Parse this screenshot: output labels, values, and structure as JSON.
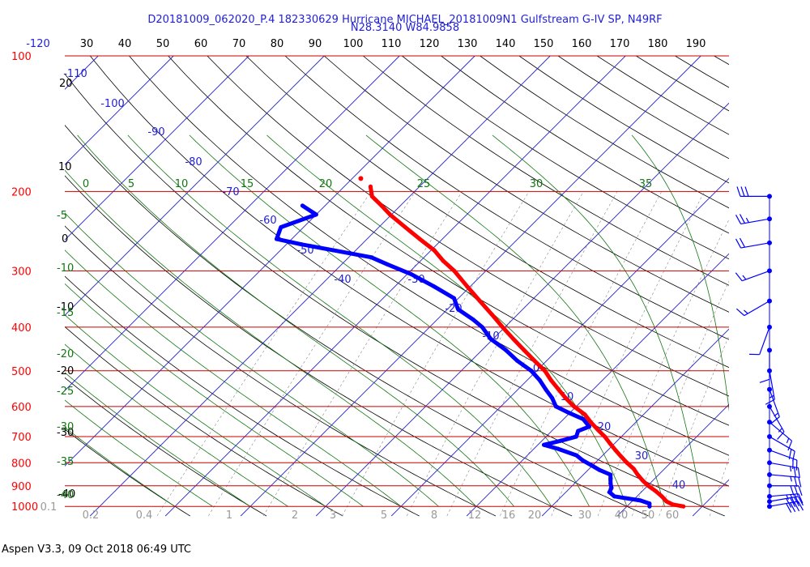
{
  "header": {
    "title_line1": "D20181009_062020_P.4 182330629 Hurricane MICHAEL_20181009N1 Gulfstream G-IV SP, N49RF",
    "title_line2": "N28.3140 W84.9858"
  },
  "footer": {
    "text": "Aspen V3.3, 09 Oct 2018  06:49 UTC"
  },
  "colors": {
    "temperature": "#ff0000",
    "dewpoint": "#0000ff",
    "isobar": "#cc0000",
    "isotherm": "#2222cc",
    "dry_adiabat": "#000000",
    "moist_adiabat": "#117711",
    "mixing_ratio": "#888888",
    "wind_barb": "#0000ff",
    "title": "#1f1fd6"
  },
  "chart_data": {
    "type": "skew-t log-p",
    "title": "D20181009_062020_P.4 182330629 Hurricane MICHAEL_20181009N1 Gulfstream G-IV SP, N49RF",
    "subtitle": "N28.3140 W84.9858",
    "pressure_levels_hPa": [
      100,
      200,
      300,
      400,
      500,
      600,
      700,
      800,
      900,
      1000
    ],
    "top_axis_labels": [
      "-120",
      "30",
      "40",
      "50",
      "60",
      "70",
      "80",
      "90",
      "100",
      "110",
      "120",
      "130",
      "140",
      "150",
      "160",
      "170",
      "180",
      "190"
    ],
    "isotherm_labels": [
      "-110",
      "-100",
      "-90",
      "-80",
      "-70",
      "-60",
      "-50",
      "-40",
      "-30",
      "-20",
      "-10",
      "0",
      "10",
      "20",
      "30",
      "40"
    ],
    "dry_adiabat_labels": [
      "20",
      "10",
      "0",
      "-10",
      "-20",
      "-30",
      "-40"
    ],
    "moist_adiabat_top_labels": [
      "0",
      "5",
      "10",
      "15",
      "20",
      "25",
      "30",
      "35"
    ],
    "moist_adiabat_left_labels": [
      "-5",
      "-10",
      "-15",
      "-20",
      "-25",
      "-30",
      "-35",
      "-40"
    ],
    "mixing_ratio_labels": [
      "0.1",
      "0.2",
      "0.4",
      "1",
      "2",
      "3",
      "5",
      "8",
      "12",
      "16",
      "20",
      "30",
      "40",
      "50",
      "60"
    ],
    "temperature_profile": [
      {
        "p": 1000,
        "t": 27.5
      },
      {
        "p": 990,
        "t": 25.8
      },
      {
        "p": 975,
        "t": 24.6
      },
      {
        "p": 950,
        "t": 23.3
      },
      {
        "p": 925,
        "t": 21.8
      },
      {
        "p": 900,
        "t": 20.1
      },
      {
        "p": 875,
        "t": 18.6
      },
      {
        "p": 850,
        "t": 17.2
      },
      {
        "p": 825,
        "t": 15.9
      },
      {
        "p": 800,
        "t": 14.2
      },
      {
        "p": 775,
        "t": 12.6
      },
      {
        "p": 750,
        "t": 11.0
      },
      {
        "p": 725,
        "t": 9.4
      },
      {
        "p": 700,
        "t": 7.8
      },
      {
        "p": 675,
        "t": 5.9
      },
      {
        "p": 650,
        "t": 4.0
      },
      {
        "p": 625,
        "t": 2.2
      },
      {
        "p": 600,
        "t": -0.3
      },
      {
        "p": 575,
        "t": -2.5
      },
      {
        "p": 550,
        "t": -4.6
      },
      {
        "p": 525,
        "t": -6.8
      },
      {
        "p": 500,
        "t": -8.9
      },
      {
        "p": 475,
        "t": -11.6
      },
      {
        "p": 450,
        "t": -14.4
      },
      {
        "p": 425,
        "t": -17.3
      },
      {
        "p": 400,
        "t": -20.3
      },
      {
        "p": 375,
        "t": -23.4
      },
      {
        "p": 350,
        "t": -26.8
      },
      {
        "p": 325,
        "t": -30.4
      },
      {
        "p": 300,
        "t": -34.2
      },
      {
        "p": 285,
        "t": -37.0
      },
      {
        "p": 270,
        "t": -39.6
      },
      {
        "p": 255,
        "t": -43.0
      },
      {
        "p": 240,
        "t": -46.5
      },
      {
        "p": 225,
        "t": -50.2
      },
      {
        "p": 215,
        "t": -52.5
      },
      {
        "p": 205,
        "t": -55.0
      },
      {
        "p": 195,
        "t": -56.5
      }
    ],
    "dewpoint_profile": [
      {
        "p": 1000,
        "td": 23.0
      },
      {
        "p": 985,
        "td": 22.6
      },
      {
        "p": 970,
        "td": 21.0
      },
      {
        "p": 950,
        "td": 17.0
      },
      {
        "p": 930,
        "td": 15.8
      },
      {
        "p": 910,
        "td": 15.5
      },
      {
        "p": 890,
        "td": 14.8
      },
      {
        "p": 870,
        "td": 14.2
      },
      {
        "p": 850,
        "td": 13.6
      },
      {
        "p": 830,
        "td": 11.5
      },
      {
        "p": 810,
        "td": 9.8
      },
      {
        "p": 790,
        "td": 8.0
      },
      {
        "p": 770,
        "td": 6.5
      },
      {
        "p": 745,
        "td": 3.2
      },
      {
        "p": 730,
        "td": 0.8
      },
      {
        "p": 715,
        "td": 2.5
      },
      {
        "p": 700,
        "td": 4.0
      },
      {
        "p": 680,
        "td": 3.5
      },
      {
        "p": 665,
        "td": 4.4
      },
      {
        "p": 640,
        "td": 2.6
      },
      {
        "p": 620,
        "td": -0.1
      },
      {
        "p": 600,
        "td": -2.7
      },
      {
        "p": 575,
        "td": -4.3
      },
      {
        "p": 550,
        "td": -6.3
      },
      {
        "p": 525,
        "td": -8.3
      },
      {
        "p": 500,
        "td": -10.7
      },
      {
        "p": 475,
        "td": -13.9
      },
      {
        "p": 450,
        "td": -16.8
      },
      {
        "p": 425,
        "td": -20.3
      },
      {
        "p": 400,
        "td": -23.0
      },
      {
        "p": 385,
        "td": -25.2
      },
      {
        "p": 365,
        "td": -28.6
      },
      {
        "p": 345,
        "td": -30.6
      },
      {
        "p": 325,
        "td": -34.8
      },
      {
        "p": 305,
        "td": -39.5
      },
      {
        "p": 290,
        "td": -44.0
      },
      {
        "p": 280,
        "td": -47.0
      },
      {
        "p": 270,
        "td": -53.0
      },
      {
        "p": 262,
        "td": -58.0
      },
      {
        "p": 255,
        "td": -62.0
      },
      {
        "p": 240,
        "td": -63.0
      },
      {
        "p": 225,
        "td": -60.0
      },
      {
        "p": 215,
        "td": -63.0
      }
    ],
    "wind_barbs": [
      {
        "p": 1000,
        "dir": 80,
        "spd": 40
      },
      {
        "p": 975,
        "dir": 80,
        "spd": 40
      },
      {
        "p": 950,
        "dir": 85,
        "spd": 35
      },
      {
        "p": 900,
        "dir": 90,
        "spd": 30
      },
      {
        "p": 850,
        "dir": 95,
        "spd": 25
      },
      {
        "p": 800,
        "dir": 100,
        "spd": 25
      },
      {
        "p": 750,
        "dir": 110,
        "spd": 20
      },
      {
        "p": 700,
        "dir": 120,
        "spd": 20
      },
      {
        "p": 650,
        "dir": 130,
        "spd": 15
      },
      {
        "p": 600,
        "dir": 150,
        "spd": 15
      },
      {
        "p": 550,
        "dir": 160,
        "spd": 15
      },
      {
        "p": 500,
        "dir": 170,
        "spd": 15
      },
      {
        "p": 450,
        "dir": 180,
        "spd": 10
      },
      {
        "p": 400,
        "dir": 200,
        "spd": 10
      },
      {
        "p": 350,
        "dir": 240,
        "spd": 15
      },
      {
        "p": 300,
        "dir": 250,
        "spd": 15
      },
      {
        "p": 260,
        "dir": 260,
        "spd": 20
      },
      {
        "p": 230,
        "dir": 260,
        "spd": 25
      },
      {
        "p": 205,
        "dir": 270,
        "spd": 30
      }
    ]
  }
}
